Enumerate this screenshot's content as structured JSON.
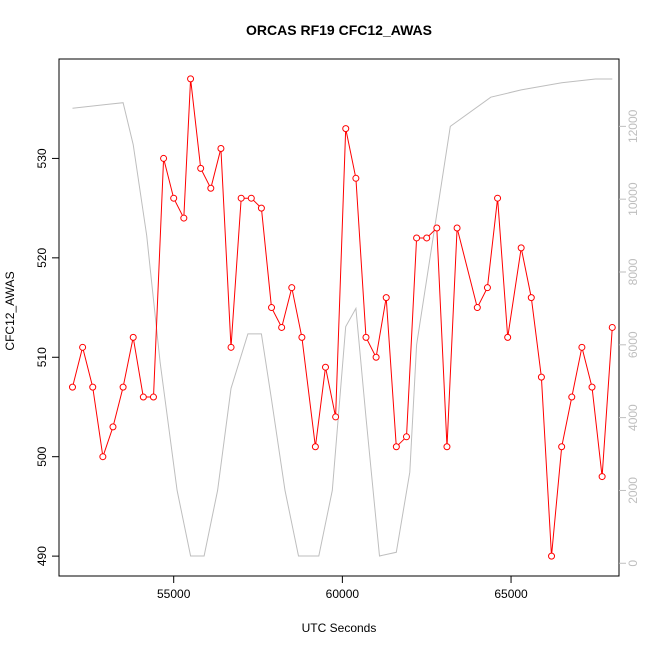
{
  "chart_data": {
    "type": "line",
    "title": "ORCAS RF19 CFC12_AWAS",
    "xlabel": "UTC Seconds",
    "ylabel": "CFC12_AWAS",
    "xlim": [
      51600,
      68200
    ],
    "ylim": [
      488,
      540
    ],
    "y2lim": [
      -350,
      13850
    ],
    "x_ticks": [
      55000,
      60000,
      65000
    ],
    "y_ticks": [
      490,
      500,
      510,
      520,
      530
    ],
    "y2_ticks": [
      0,
      2000,
      4000,
      6000,
      8000,
      10000,
      12000
    ],
    "series": [
      {
        "name": "",
        "color": "#ff0000",
        "markers": "open-circle",
        "x": [
          52000,
          52300,
          52600,
          52900,
          53200,
          53500,
          53800,
          54100,
          54400,
          54700,
          55000,
          55300,
          55500,
          55800,
          56100,
          56400,
          56700,
          57000,
          57300,
          57600,
          57900,
          58200,
          58500,
          58800,
          59200,
          59500,
          59800,
          60100,
          60400,
          60700,
          61000,
          61300,
          61600,
          61900,
          62200,
          62500,
          62800,
          63100,
          63400,
          64000,
          64300,
          64600,
          64900,
          65300,
          65600,
          65900,
          66200,
          66500,
          66800,
          67100,
          67400,
          67700,
          68000
        ],
        "y": [
          507,
          511,
          507,
          500,
          503,
          507,
          512,
          506,
          506,
          530,
          526,
          524,
          538,
          529,
          527,
          531,
          511,
          526,
          526,
          525,
          515,
          513,
          517,
          512,
          501,
          509,
          504,
          533,
          528,
          512,
          510,
          516,
          501,
          502,
          522,
          522,
          523,
          501,
          523,
          515,
          517,
          526,
          512,
          521,
          516,
          508,
          490,
          501,
          506,
          511,
          507,
          498,
          513
        ]
      },
      {
        "name": "",
        "color": "#bebebe",
        "axis": "right",
        "x": [
          52000,
          53000,
          53500,
          53800,
          54200,
          54600,
          55100,
          55500,
          55900,
          56300,
          56700,
          57200,
          57600,
          57900,
          58300,
          58700,
          59300,
          59700,
          60100,
          60400,
          60700,
          61100,
          61600,
          62000,
          62200,
          63200,
          64400,
          65300,
          66500,
          67500,
          68000
        ],
        "y": [
          12500,
          12600,
          12650,
          11500,
          9000,
          5500,
          2000,
          200,
          200,
          2000,
          4800,
          6300,
          6300,
          4500,
          2000,
          200,
          200,
          2000,
          6500,
          7000,
          4000,
          200,
          300,
          2500,
          6000,
          12000,
          12800,
          13000,
          13200,
          13300,
          13300
        ]
      }
    ]
  }
}
